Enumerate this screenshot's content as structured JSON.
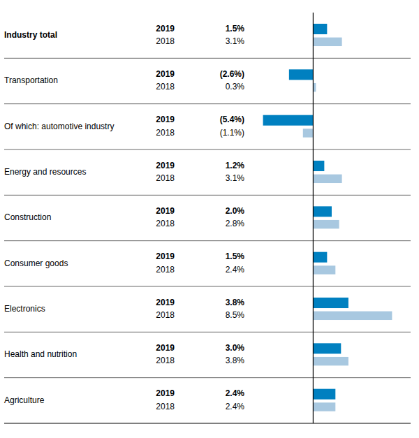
{
  "chart_data": {
    "type": "bar",
    "orientation": "horizontal",
    "categories": [
      "Industry total",
      "Transportation",
      "Of which: automotive industry",
      "Energy and resources",
      "Construction",
      "Consumer goods",
      "Electronics",
      "Health and nutrition",
      "Agriculture"
    ],
    "series": [
      {
        "name": "2019",
        "color": "#0080C0",
        "values": [
          1.5,
          -2.6,
          -5.4,
          1.2,
          2.0,
          1.5,
          3.8,
          3.0,
          2.4
        ],
        "value_labels": [
          "1.5%",
          "(2.6%)",
          "(5.4%)",
          "1.2%",
          "2.0%",
          "1.5%",
          "3.8%",
          "3.0%",
          "2.4%"
        ]
      },
      {
        "name": "2018",
        "color": "#A8C8E0",
        "values": [
          3.1,
          0.3,
          -1.1,
          3.1,
          2.8,
          2.4,
          8.5,
          3.8,
          2.4
        ],
        "value_labels": [
          "3.1%",
          "0.3%",
          "(1.1%)",
          "3.1%",
          "2.8%",
          "2.4%",
          "8.5%",
          "3.8%",
          "2.4%"
        ]
      }
    ],
    "xlim": [
      -6.5,
      10.5
    ],
    "grid": false,
    "data_labels": true,
    "tick_labels": "y"
  }
}
